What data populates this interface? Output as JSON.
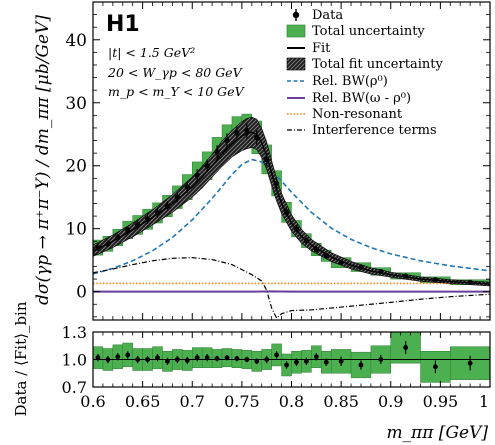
{
  "figure": {
    "experiment_label": "H1",
    "cuts": [
      "|t| < 1.5 GeV²",
      "20 < W_γp < 80 GeV",
      "m_p < m_Y < 10 GeV"
    ]
  },
  "chart_data": [
    {
      "type": "line",
      "title": "",
      "xlabel": "m_ππ  [GeV]",
      "ylabel": "dσ(γp → π⁺π⁻Y) / dm_ππ   [μb/GeV]",
      "xlim": [
        0.6,
        1.0
      ],
      "ylim": [
        -4.5,
        46
      ],
      "yticks": [
        0,
        10,
        20,
        30,
        40
      ],
      "grid": false,
      "legend_position": "top-right",
      "legend": [
        {
          "label": "Data",
          "key": "data"
        },
        {
          "label": "Total uncertainty",
          "key": "totunc"
        },
        {
          "label": "Fit",
          "key": "fit"
        },
        {
          "label": "Total fit uncertainty",
          "key": "fitunc"
        },
        {
          "label": "Rel. BW(ρ⁰)",
          "key": "rho"
        },
        {
          "label": "Rel. BW(ω - ρ⁰)",
          "key": "omega"
        },
        {
          "label": "Non-resonant",
          "key": "nonres"
        },
        {
          "label": "Interference terms",
          "key": "interf"
        }
      ],
      "colors": {
        "data": "#000000",
        "total_uncertainty": "#3fa83f",
        "fit": "#000000",
        "rho": "#1f77b4",
        "omega": "#6a3d9a",
        "nonres": "#ff7f0e",
        "interference": "#000000"
      },
      "data_bins": [
        {
          "x0": 0.6,
          "x1": 0.61,
          "y": 7.0,
          "unc": 1.2
        },
        {
          "x0": 0.61,
          "x1": 0.62,
          "y": 7.6,
          "unc": 1.2
        },
        {
          "x0": 0.62,
          "x1": 0.63,
          "y": 8.6,
          "unc": 1.3
        },
        {
          "x0": 0.63,
          "x1": 0.64,
          "y": 9.8,
          "unc": 1.4
        },
        {
          "x0": 0.64,
          "x1": 0.65,
          "y": 10.6,
          "unc": 1.5
        },
        {
          "x0": 0.65,
          "x1": 0.66,
          "y": 11.5,
          "unc": 1.6
        },
        {
          "x0": 0.66,
          "x1": 0.67,
          "y": 12.5,
          "unc": 1.6
        },
        {
          "x0": 0.67,
          "x1": 0.68,
          "y": 13.6,
          "unc": 1.7
        },
        {
          "x0": 0.68,
          "x1": 0.69,
          "y": 15.0,
          "unc": 1.8
        },
        {
          "x0": 0.69,
          "x1": 0.7,
          "y": 16.6,
          "unc": 2.0
        },
        {
          "x0": 0.7,
          "x1": 0.71,
          "y": 18.5,
          "unc": 2.1
        },
        {
          "x0": 0.71,
          "x1": 0.72,
          "y": 20.0,
          "unc": 2.2
        },
        {
          "x0": 0.72,
          "x1": 0.73,
          "y": 22.2,
          "unc": 2.3
        },
        {
          "x0": 0.73,
          "x1": 0.74,
          "y": 24.0,
          "unc": 2.5
        },
        {
          "x0": 0.74,
          "x1": 0.75,
          "y": 25.2,
          "unc": 2.6
        },
        {
          "x0": 0.75,
          "x1": 0.76,
          "y": 25.6,
          "unc": 2.6
        },
        {
          "x0": 0.76,
          "x1": 0.77,
          "y": 24.5,
          "unc": 2.6
        },
        {
          "x0": 0.77,
          "x1": 0.78,
          "y": 21.0,
          "unc": 2.3
        },
        {
          "x0": 0.78,
          "x1": 0.79,
          "y": 17.2,
          "unc": 2.0
        },
        {
          "x0": 0.79,
          "x1": 0.8,
          "y": 12.6,
          "unc": 1.6
        },
        {
          "x0": 0.8,
          "x1": 0.81,
          "y": 10.0,
          "unc": 1.3
        },
        {
          "x0": 0.81,
          "x1": 0.82,
          "y": 8.1,
          "unc": 1.1
        },
        {
          "x0": 0.82,
          "x1": 0.83,
          "y": 6.7,
          "unc": 1.0
        },
        {
          "x0": 0.83,
          "x1": 0.84,
          "y": 5.7,
          "unc": 0.9
        },
        {
          "x0": 0.84,
          "x1": 0.86,
          "y": 4.6,
          "unc": 0.8
        },
        {
          "x0": 0.86,
          "x1": 0.88,
          "y": 3.9,
          "unc": 0.7
        },
        {
          "x0": 0.88,
          "x1": 0.9,
          "y": 3.2,
          "unc": 0.6
        },
        {
          "x0": 0.9,
          "x1": 0.93,
          "y": 2.5,
          "unc": 0.5
        },
        {
          "x0": 0.93,
          "x1": 0.96,
          "y": 1.9,
          "unc": 0.45
        },
        {
          "x0": 0.96,
          "x1": 1.0,
          "y": 1.5,
          "unc": 0.4
        }
      ],
      "fit": {
        "x": [
          0.6,
          0.62,
          0.64,
          0.66,
          0.68,
          0.7,
          0.71,
          0.72,
          0.73,
          0.74,
          0.75,
          0.755,
          0.76,
          0.765,
          0.77,
          0.775,
          0.78,
          0.785,
          0.79,
          0.8,
          0.81,
          0.82,
          0.84,
          0.86,
          0.88,
          0.9,
          0.93,
          0.96,
          1.0
        ],
        "y": [
          6.5,
          8.0,
          9.8,
          11.8,
          14.0,
          16.6,
          18.2,
          20.0,
          21.9,
          23.5,
          24.7,
          25.1,
          25.3,
          25.0,
          23.6,
          21.6,
          18.8,
          16.2,
          14.0,
          10.9,
          8.8,
          7.4,
          5.5,
          4.2,
          3.3,
          2.7,
          2.0,
          1.6,
          1.2
        ],
        "band_halfwidth": [
          0.9,
          1.0,
          1.1,
          1.2,
          1.4,
          1.6,
          1.7,
          1.8,
          2.0,
          2.1,
          2.3,
          2.4,
          2.4,
          2.4,
          2.3,
          2.2,
          2.0,
          1.8,
          1.6,
          1.3,
          1.1,
          0.9,
          0.7,
          0.6,
          0.5,
          0.4,
          0.35,
          0.3,
          0.3
        ]
      },
      "rel_bw_rho": {
        "x": [
          0.6,
          0.62,
          0.64,
          0.66,
          0.68,
          0.7,
          0.72,
          0.74,
          0.75,
          0.76,
          0.77,
          0.78,
          0.8,
          0.82,
          0.84,
          0.86,
          0.88,
          0.9,
          0.93,
          0.96,
          1.0
        ],
        "y": [
          2.8,
          3.7,
          4.9,
          6.5,
          8.6,
          11.4,
          14.8,
          18.6,
          20.2,
          21.0,
          20.6,
          19.3,
          15.8,
          12.6,
          10.1,
          8.3,
          7.0,
          6.0,
          4.9,
          4.1,
          3.3
        ]
      },
      "rel_bw_omega_rho": {
        "x": [
          0.6,
          0.7,
          0.76,
          0.78,
          0.8,
          0.9,
          1.0
        ],
        "y": [
          0.0,
          0.0,
          0.0,
          0.05,
          0.0,
          0.0,
          0.0
        ]
      },
      "non_resonant": {
        "x": [
          0.6,
          1.0
        ],
        "y": [
          1.3,
          1.3
        ]
      },
      "interference": {
        "x": [
          0.6,
          0.62,
          0.64,
          0.66,
          0.68,
          0.7,
          0.72,
          0.74,
          0.76,
          0.77,
          0.775,
          0.78,
          0.785,
          0.79,
          0.8,
          0.82,
          0.84,
          0.86,
          0.88,
          0.9,
          0.93,
          0.96,
          1.0
        ],
        "y": [
          3.0,
          3.6,
          4.3,
          4.9,
          5.3,
          5.4,
          5.1,
          4.3,
          2.7,
          1.7,
          0.2,
          -2.6,
          -4.2,
          -3.5,
          -3.0,
          -2.9,
          -2.6,
          -2.3,
          -2.0,
          -1.7,
          -1.2,
          -0.8,
          -0.4
        ]
      }
    },
    {
      "type": "scatter",
      "title": "",
      "xlabel": "m_ππ  [GeV]",
      "ylabel": "Data / ⟨Fit⟩_bin",
      "xlim": [
        0.6,
        1.0
      ],
      "ylim": [
        0.7,
        1.3
      ],
      "yticks": [
        0.7,
        1.0,
        1.3
      ],
      "xticks": [
        0.6,
        0.65,
        0.7,
        0.75,
        0.8,
        0.85,
        0.9,
        0.95,
        1.0
      ],
      "xtick_labels": [
        "0.6",
        "0.65",
        "0.7",
        "0.75",
        "0.8",
        "0.85",
        "0.9",
        "0.95",
        "1"
      ],
      "reference_line": 1.0,
      "points": [
        {
          "x0": 0.6,
          "x1": 0.61,
          "y": 1.02,
          "err": 0.04,
          "unc": 0.12
        },
        {
          "x0": 0.61,
          "x1": 0.62,
          "y": 1.0,
          "err": 0.04,
          "unc": 0.12
        },
        {
          "x0": 0.62,
          "x1": 0.63,
          "y": 1.03,
          "err": 0.04,
          "unc": 0.13
        },
        {
          "x0": 0.63,
          "x1": 0.64,
          "y": 1.05,
          "err": 0.04,
          "unc": 0.13
        },
        {
          "x0": 0.64,
          "x1": 0.65,
          "y": 1.0,
          "err": 0.04,
          "unc": 0.12
        },
        {
          "x0": 0.65,
          "x1": 0.66,
          "y": 1.0,
          "err": 0.04,
          "unc": 0.12
        },
        {
          "x0": 0.66,
          "x1": 0.67,
          "y": 1.02,
          "err": 0.04,
          "unc": 0.12
        },
        {
          "x0": 0.67,
          "x1": 0.68,
          "y": 0.98,
          "err": 0.04,
          "unc": 0.11
        },
        {
          "x0": 0.68,
          "x1": 0.69,
          "y": 1.0,
          "err": 0.04,
          "unc": 0.11
        },
        {
          "x0": 0.69,
          "x1": 0.7,
          "y": 0.99,
          "err": 0.04,
          "unc": 0.11
        },
        {
          "x0": 0.7,
          "x1": 0.71,
          "y": 1.02,
          "err": 0.04,
          "unc": 0.11
        },
        {
          "x0": 0.71,
          "x1": 0.72,
          "y": 1.02,
          "err": 0.04,
          "unc": 0.11
        },
        {
          "x0": 0.72,
          "x1": 0.73,
          "y": 1.01,
          "err": 0.03,
          "unc": 0.1
        },
        {
          "x0": 0.73,
          "x1": 0.74,
          "y": 1.02,
          "err": 0.03,
          "unc": 0.1
        },
        {
          "x0": 0.74,
          "x1": 0.75,
          "y": 1.01,
          "err": 0.03,
          "unc": 0.1
        },
        {
          "x0": 0.75,
          "x1": 0.76,
          "y": 1.0,
          "err": 0.03,
          "unc": 0.1
        },
        {
          "x0": 0.76,
          "x1": 0.77,
          "y": 0.98,
          "err": 0.03,
          "unc": 0.11
        },
        {
          "x0": 0.77,
          "x1": 0.78,
          "y": 1.0,
          "err": 0.04,
          "unc": 0.11
        },
        {
          "x0": 0.78,
          "x1": 0.79,
          "y": 1.05,
          "err": 0.04,
          "unc": 0.12
        },
        {
          "x0": 0.79,
          "x1": 0.8,
          "y": 0.94,
          "err": 0.04,
          "unc": 0.12
        },
        {
          "x0": 0.8,
          "x1": 0.81,
          "y": 0.97,
          "err": 0.04,
          "unc": 0.12
        },
        {
          "x0": 0.81,
          "x1": 0.82,
          "y": 0.98,
          "err": 0.04,
          "unc": 0.12
        },
        {
          "x0": 0.82,
          "x1": 0.83,
          "y": 1.03,
          "err": 0.04,
          "unc": 0.12
        },
        {
          "x0": 0.83,
          "x1": 0.84,
          "y": 0.97,
          "err": 0.04,
          "unc": 0.12
        },
        {
          "x0": 0.84,
          "x1": 0.86,
          "y": 0.98,
          "err": 0.05,
          "unc": 0.13
        },
        {
          "x0": 0.86,
          "x1": 0.88,
          "y": 0.94,
          "err": 0.05,
          "unc": 0.14
        },
        {
          "x0": 0.88,
          "x1": 0.9,
          "y": 1.0,
          "err": 0.05,
          "unc": 0.15
        },
        {
          "x0": 0.9,
          "x1": 0.93,
          "y": 1.13,
          "err": 0.07,
          "unc": 0.17
        },
        {
          "x0": 0.93,
          "x1": 0.96,
          "y": 0.92,
          "err": 0.07,
          "unc": 0.17
        },
        {
          "x0": 0.96,
          "x1": 1.0,
          "y": 0.96,
          "err": 0.08,
          "unc": 0.18
        }
      ]
    }
  ]
}
